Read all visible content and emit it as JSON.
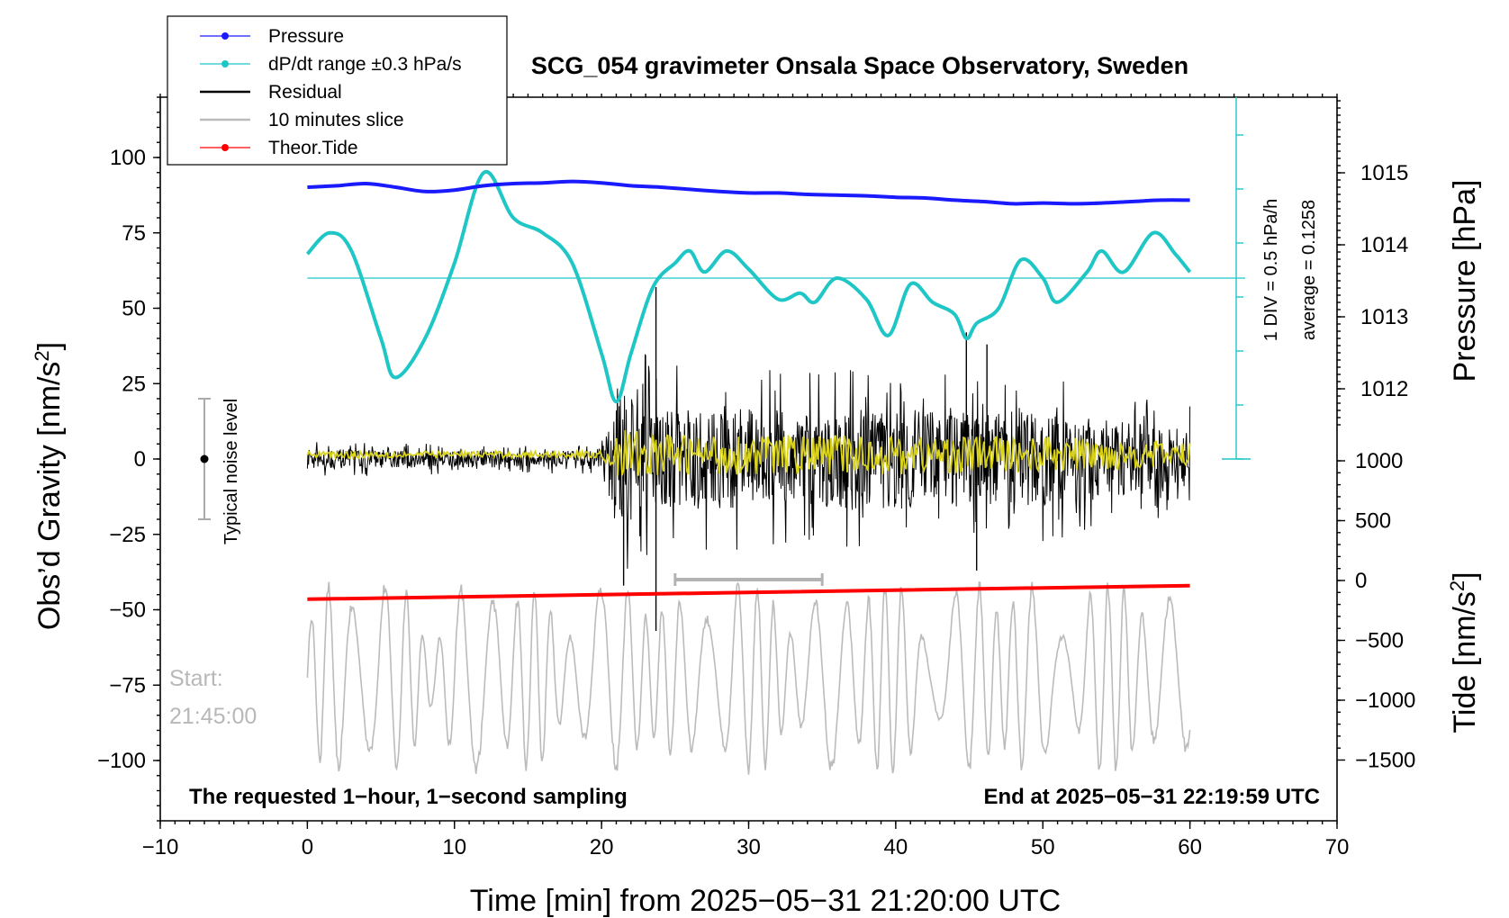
{
  "chart_data": {
    "type": "line",
    "title": "SCG_054 gravimeter Onsala Space Observatory, Sweden",
    "xlabel": "Time [min] from 2025−05−31 21:20:00 UTC",
    "xlim": [
      -10,
      70
    ],
    "xticks": [
      "−10",
      "0",
      "10",
      "20",
      "30",
      "40",
      "50",
      "60",
      "70"
    ],
    "left_axis": {
      "label": "Obs’d Gravity [nm/s",
      "label_sup": "2",
      "label_end": "]",
      "ylim": [
        -120,
        120
      ],
      "ticks": [
        100,
        75,
        50,
        25,
        0,
        -25,
        -50,
        -75,
        -100
      ],
      "tick_labels": [
        "100",
        "75",
        "50",
        "25",
        "0",
        "−25",
        "−50",
        "−75",
        "−100"
      ]
    },
    "pressure_axis": {
      "label": "Pressure [hPa]",
      "ticks": [
        1015,
        1014,
        1013,
        1012
      ],
      "tick_labels": [
        "1015",
        "1014",
        "1013",
        "1012"
      ]
    },
    "tide_axis": {
      "label": "Tide [nm/s",
      "label_sup": "2",
      "label_end": "]",
      "ticks": [
        1000,
        500,
        0,
        -500,
        -1000,
        -1500
      ],
      "tick_labels": [
        "1000",
        "500",
        "0",
        "−500",
        "−1000",
        "−1500"
      ]
    },
    "series": [
      {
        "name": "Pressure",
        "color": "#1a1aff",
        "unit": "hPa",
        "points": [
          [
            0,
            1014.8
          ],
          [
            2,
            1014.82
          ],
          [
            4,
            1014.85
          ],
          [
            6,
            1014.8
          ],
          [
            8,
            1014.74
          ],
          [
            10,
            1014.76
          ],
          [
            12,
            1014.82
          ],
          [
            14,
            1014.85
          ],
          [
            16,
            1014.86
          ],
          [
            18,
            1014.88
          ],
          [
            20,
            1014.86
          ],
          [
            22,
            1014.82
          ],
          [
            24,
            1014.8
          ],
          [
            26,
            1014.77
          ],
          [
            28,
            1014.74
          ],
          [
            30,
            1014.72
          ],
          [
            32,
            1014.72
          ],
          [
            34,
            1014.7
          ],
          [
            36,
            1014.69
          ],
          [
            38,
            1014.68
          ],
          [
            40,
            1014.66
          ],
          [
            42,
            1014.65
          ],
          [
            44,
            1014.62
          ],
          [
            46,
            1014.6
          ],
          [
            48,
            1014.57
          ],
          [
            50,
            1014.58
          ],
          [
            52,
            1014.57
          ],
          [
            54,
            1014.58
          ],
          [
            56,
            1014.6
          ],
          [
            58,
            1014.62
          ],
          [
            60,
            1014.62
          ]
        ]
      },
      {
        "name": "dP/dt range ±0.3 hPa/s",
        "color": "#1fc6c6",
        "unit": "index",
        "points": [
          [
            0,
            68
          ],
          [
            1.5,
            75
          ],
          [
            3,
            69
          ],
          [
            5,
            40
          ],
          [
            6,
            27
          ],
          [
            8,
            40
          ],
          [
            10,
            65
          ],
          [
            12,
            95
          ],
          [
            14,
            80
          ],
          [
            16,
            75
          ],
          [
            18,
            65
          ],
          [
            20,
            35
          ],
          [
            21,
            19
          ],
          [
            22,
            35
          ],
          [
            23.5,
            57
          ],
          [
            25,
            65
          ],
          [
            26,
            69
          ],
          [
            27,
            62
          ],
          [
            28.5,
            69
          ],
          [
            30,
            63
          ],
          [
            32,
            53
          ],
          [
            33.5,
            55
          ],
          [
            34.5,
            52
          ],
          [
            36,
            60
          ],
          [
            38,
            53
          ],
          [
            39.5,
            41
          ],
          [
            41,
            58
          ],
          [
            42.5,
            52
          ],
          [
            44,
            48
          ],
          [
            44.8,
            40
          ],
          [
            45.5,
            45
          ],
          [
            47,
            50
          ],
          [
            48.5,
            66
          ],
          [
            50,
            60
          ],
          [
            51,
            52
          ],
          [
            53,
            62
          ],
          [
            54,
            69
          ],
          [
            55.5,
            62
          ],
          [
            57.5,
            75
          ],
          [
            59,
            68
          ],
          [
            60,
            62
          ]
        ]
      },
      {
        "name": "Residual",
        "color": "#000000",
        "unit": "nm/s2",
        "amplitude_envelope": [
          [
            0,
            6
          ],
          [
            10,
            5
          ],
          [
            20,
            5
          ],
          [
            21,
            40
          ],
          [
            24,
            32
          ],
          [
            30,
            30
          ],
          [
            40,
            30
          ],
          [
            50,
            28
          ],
          [
            60,
            18
          ]
        ],
        "spikes": [
          [
            21.5,
            -42
          ],
          [
            23.7,
            57
          ],
          [
            23.7,
            -57
          ],
          [
            44.8,
            42
          ],
          [
            45.5,
            -37
          ],
          [
            46.2,
            38
          ]
        ]
      },
      {
        "name": "10 minutes slice",
        "color": "#bbbbbb",
        "unit": "nm/s2",
        "x_range": [
          0,
          60
        ],
        "y_range": [
          -105,
          -40
        ]
      },
      {
        "name": "Theor.Tide",
        "color": "#ff0000",
        "unit": "nm/s2",
        "points": [
          [
            0,
            -46.5
          ],
          [
            60,
            -42
          ]
        ]
      }
    ],
    "slice_marker": {
      "x_start": 25,
      "x_end": 35,
      "y": -40
    },
    "noise_level": {
      "label": "Typical noise level",
      "x": -7,
      "center": 0,
      "range": [
        -20,
        20
      ]
    },
    "pressure_scale": {
      "label": "1 DIV = 0.5 hPa/h",
      "average_label": "average = 0.1258"
    },
    "legend": [
      {
        "label": "Pressure",
        "color": "#1a1aff"
      },
      {
        "label": "dP/dt range ±0.3 hPa/s",
        "color": "#1fc6c6"
      },
      {
        "label": "Residual",
        "color": "#000000"
      },
      {
        "label": "10 minutes slice",
        "color": "#bbbbbb"
      },
      {
        "label": "Theor.Tide",
        "color": "#ff0000"
      }
    ],
    "start_label": "Start:",
    "start_time": "21:45:00",
    "note_left": "The requested 1−hour, 1−second sampling",
    "note_right": "End at 2025−05−31 22:19:59 UTC"
  }
}
